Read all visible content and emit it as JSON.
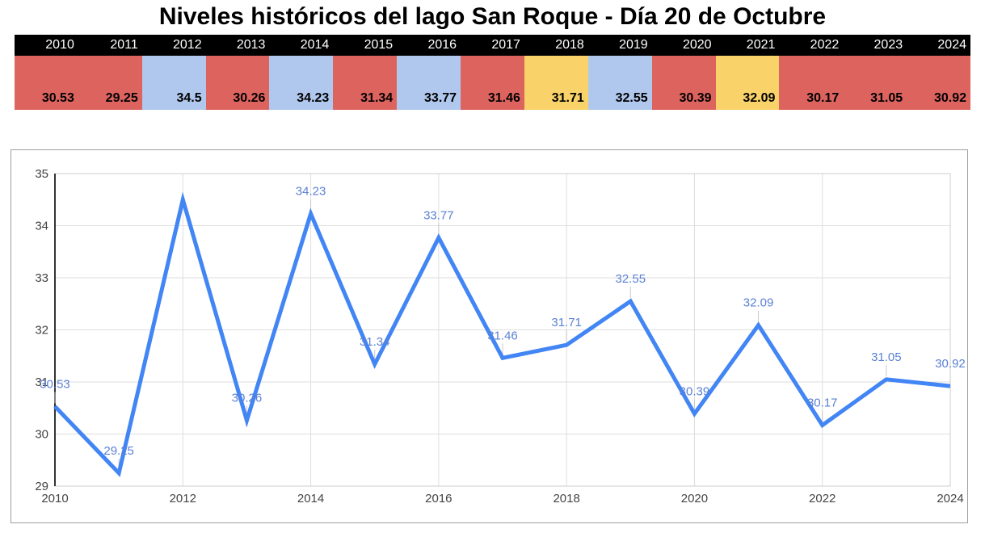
{
  "title": "Niveles históricos del lago San Roque - Día 20 de Octubre",
  "colors": {
    "header_bg": "#000000",
    "header_text": "#ffffff",
    "value_text": "#000000",
    "red": "#dd635f",
    "blue": "#b0c8ee",
    "yellow": "#f9d369",
    "line": "#4285f4",
    "annotation_text": "#5a80d4",
    "annotation_stem": "#c9c9c9",
    "axis_text": "#444444",
    "grid": "#dedede",
    "axis_line": "#333333",
    "plot_border": "#cccccc"
  },
  "table": {
    "columns": [
      {
        "year": "2010",
        "value": "30.53",
        "category": "red"
      },
      {
        "year": "2011",
        "value": "29.25",
        "category": "red"
      },
      {
        "year": "2012",
        "value": "34.5",
        "category": "blue"
      },
      {
        "year": "2013",
        "value": "30.26",
        "category": "red"
      },
      {
        "year": "2014",
        "value": "34.23",
        "category": "blue"
      },
      {
        "year": "2015",
        "value": "31.34",
        "category": "red"
      },
      {
        "year": "2016",
        "value": "33.77",
        "category": "blue"
      },
      {
        "year": "2017",
        "value": "31.46",
        "category": "red"
      },
      {
        "year": "2018",
        "value": "31.71",
        "category": "yellow"
      },
      {
        "year": "2019",
        "value": "32.55",
        "category": "blue"
      },
      {
        "year": "2020",
        "value": "30.39",
        "category": "red"
      },
      {
        "year": "2021",
        "value": "32.09",
        "category": "yellow"
      },
      {
        "year": "2022",
        "value": "30.17",
        "category": "red"
      },
      {
        "year": "2023",
        "value": "31.05",
        "category": "red"
      },
      {
        "year": "2024",
        "value": "30.92",
        "category": "red"
      }
    ]
  },
  "chart_data": {
    "type": "line",
    "title": "",
    "xlabel": "",
    "ylabel": "",
    "x": [
      2010,
      2011,
      2012,
      2013,
      2014,
      2015,
      2016,
      2017,
      2018,
      2019,
      2020,
      2021,
      2022,
      2023,
      2024
    ],
    "values": [
      30.53,
      29.25,
      34.5,
      30.26,
      34.23,
      31.34,
      33.77,
      31.46,
      31.71,
      32.55,
      30.39,
      32.09,
      30.17,
      31.05,
      30.92
    ],
    "point_labels": [
      "30.53",
      "29.25",
      null,
      "30.26",
      "34.23",
      "31.34",
      "33.77",
      "31.46",
      "31.71",
      "32.55",
      "30.39",
      "32.09",
      "30.17",
      "31.05",
      "30.92"
    ],
    "x_ticks": [
      2010,
      2012,
      2014,
      2016,
      2018,
      2020,
      2022,
      2024
    ],
    "y_ticks": [
      29,
      30,
      31,
      32,
      33,
      34,
      35
    ],
    "xlim": [
      2010,
      2024
    ],
    "ylim": [
      29,
      35
    ],
    "grid": true,
    "legend": "none"
  }
}
